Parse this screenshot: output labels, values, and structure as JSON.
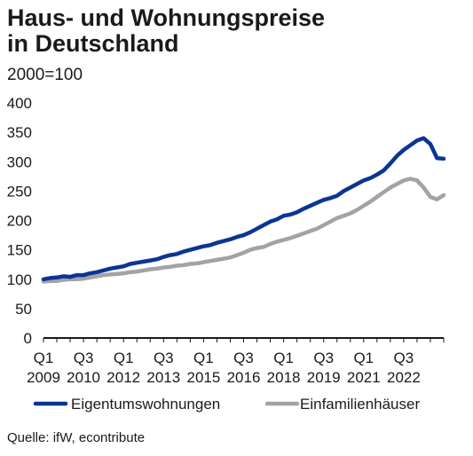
{
  "chart_data": {
    "type": "line",
    "title_lines": [
      "Haus- und Wohnungspreise",
      "in Deutschland"
    ],
    "subtitle": "2000=100",
    "source": "Quelle: ifW, econtribute",
    "ylim": [
      0,
      400
    ],
    "yticks": [
      0,
      50,
      100,
      150,
      200,
      250,
      300,
      350,
      400
    ],
    "y_gridlines": false,
    "legend_position": "bottom",
    "x_tick_labels": [
      {
        "quarter": "Q1",
        "year": "2009",
        "t": 2009.0
      },
      {
        "quarter": "Q3",
        "year": "2010",
        "t": 2010.5
      },
      {
        "quarter": "Q1",
        "year": "2012",
        "t": 2012.0
      },
      {
        "quarter": "Q3",
        "year": "2013",
        "t": 2013.5
      },
      {
        "quarter": "Q1",
        "year": "2015",
        "t": 2015.0
      },
      {
        "quarter": "Q3",
        "year": "2016",
        "t": 2016.5
      },
      {
        "quarter": "Q1",
        "year": "2018",
        "t": 2018.0
      },
      {
        "quarter": "Q3",
        "year": "2019",
        "t": 2019.5
      },
      {
        "quarter": "Q1",
        "year": "2021",
        "t": 2021.0
      },
      {
        "quarter": "Q3",
        "year": "2022",
        "t": 2022.5
      }
    ],
    "x": [
      2009.0,
      2009.25,
      2009.5,
      2009.75,
      2010.0,
      2010.25,
      2010.5,
      2010.75,
      2011.0,
      2011.25,
      2011.5,
      2011.75,
      2012.0,
      2012.25,
      2012.5,
      2012.75,
      2013.0,
      2013.25,
      2013.5,
      2013.75,
      2014.0,
      2014.25,
      2014.5,
      2014.75,
      2015.0,
      2015.25,
      2015.5,
      2015.75,
      2016.0,
      2016.25,
      2016.5,
      2016.75,
      2017.0,
      2017.25,
      2017.5,
      2017.75,
      2018.0,
      2018.25,
      2018.5,
      2018.75,
      2019.0,
      2019.25,
      2019.5,
      2019.75,
      2020.0,
      2020.25,
      2020.5,
      2020.75,
      2021.0,
      2021.25,
      2021.5,
      2021.75,
      2022.0,
      2022.25,
      2022.5,
      2022.75,
      2023.0,
      2023.25,
      2023.5
    ],
    "series": [
      {
        "name": "Eigentumswohnungen",
        "color": "#0a3595",
        "values": [
          100,
          102,
          103,
          105,
          104,
          107,
          107,
          110,
          112,
          115,
          118,
          120,
          122,
          126,
          128,
          130,
          132,
          134,
          138,
          141,
          143,
          147,
          150,
          153,
          156,
          158,
          162,
          165,
          168,
          172,
          175,
          180,
          186,
          192,
          198,
          202,
          208,
          210,
          214,
          220,
          225,
          230,
          235,
          238,
          242,
          250,
          256,
          262,
          268,
          272,
          278,
          285,
          297,
          310,
          320,
          328,
          336,
          340,
          330
        ]
      },
      {
        "name": "Einfamilienhäuser",
        "color": "#a3a3a3",
        "values": [
          96,
          97,
          97,
          99,
          100,
          100,
          101,
          103,
          105,
          107,
          108,
          109,
          110,
          112,
          113,
          115,
          117,
          118,
          120,
          121,
          123,
          124,
          126,
          127,
          129,
          131,
          133,
          135,
          137,
          141,
          145,
          150,
          153,
          155,
          160,
          164,
          167,
          170,
          174,
          178,
          182,
          186,
          192,
          198,
          204,
          208,
          212,
          218,
          225,
          232,
          240,
          248,
          256,
          262,
          268,
          271,
          268,
          256,
          240
        ]
      }
    ],
    "series_tail": {
      "x": [
        2023.75,
        2024.0
      ],
      "Eigentumswohnungen": [
        306,
        305
      ],
      "Einfamilienhäuser": [
        236,
        243
      ]
    }
  }
}
